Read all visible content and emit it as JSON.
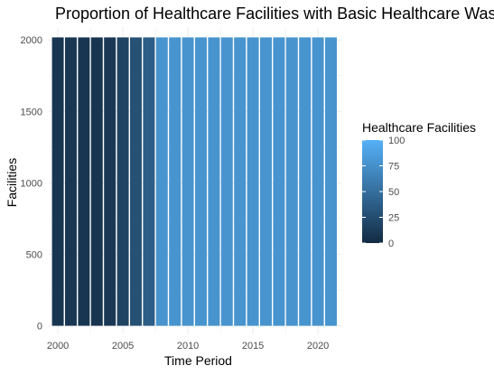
{
  "chart_data": {
    "type": "bar",
    "title": "Proportion of Healthcare Facilities with Basic Healthcare Was",
    "xlabel": "Time Period",
    "ylabel": "Facilities",
    "x": [
      2000,
      2001,
      2002,
      2003,
      2004,
      2005,
      2006,
      2007,
      2008,
      2009,
      2010,
      2011,
      2012,
      2013,
      2014,
      2015,
      2016,
      2017,
      2018,
      2019,
      2020,
      2021
    ],
    "values": [
      2018,
      2018,
      2018,
      2018,
      2018,
      2018,
      2018,
      2018,
      2018,
      2018,
      2018,
      2018,
      2018,
      2018,
      2018,
      2018,
      2018,
      2018,
      2018,
      2018,
      2018,
      2018
    ],
    "fill_values": [
      8,
      9,
      8,
      7,
      10,
      18,
      28,
      38,
      78,
      78,
      78,
      78,
      78,
      78,
      78,
      78,
      78,
      78,
      78,
      78,
      78,
      78
    ],
    "xlim": [
      1999.3,
      2021.8
    ],
    "ylim": [
      -60,
      2090
    ],
    "x_ticks": [
      2000,
      2005,
      2010,
      2015,
      2020
    ],
    "y_ticks": [
      0,
      500,
      1000,
      1500,
      2000
    ],
    "legend": {
      "title": "Healthcare Facilities",
      "placement": "right",
      "ticks": [
        0,
        25,
        50,
        75,
        100
      ],
      "range": [
        0,
        100
      ],
      "low_color": "#132B43",
      "high_color": "#56B1F7"
    },
    "grid": true,
    "grid_color": "#ebebeb",
    "background": "#ffffff"
  }
}
